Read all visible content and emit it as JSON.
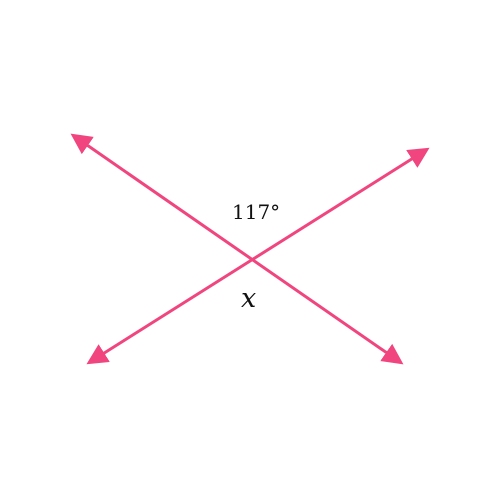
{
  "diagram": {
    "line_color": "#f0457f",
    "text_color": "#111111",
    "lines": [
      {
        "name": "line-descending"
      },
      {
        "name": "line-ascending"
      }
    ],
    "angles": {
      "known_label": "117°",
      "unknown_label": "x"
    }
  }
}
